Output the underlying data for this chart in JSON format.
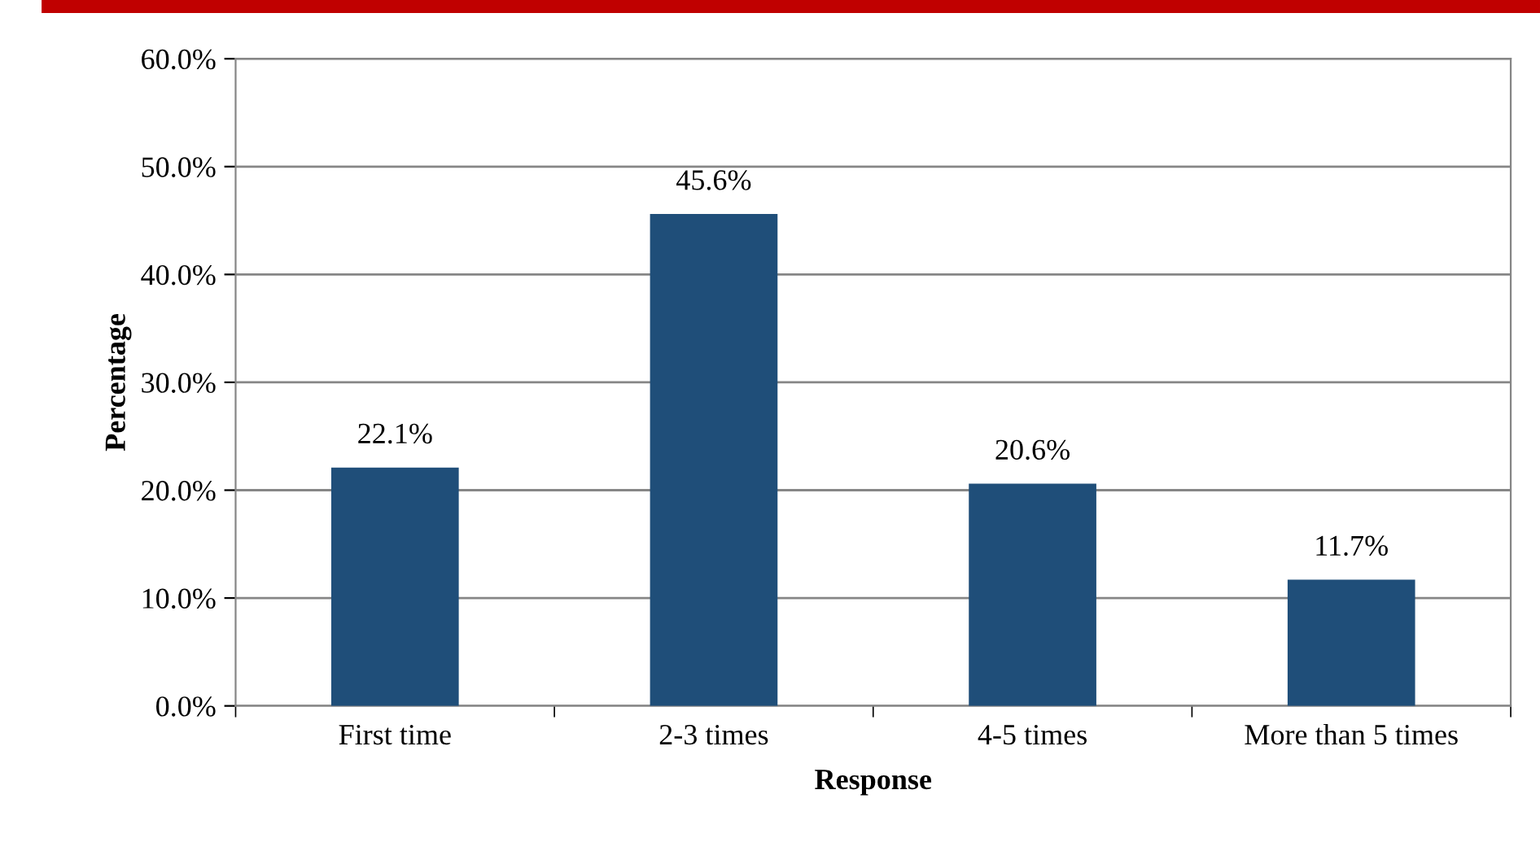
{
  "chart_data": {
    "type": "bar",
    "xlabel": "Response",
    "ylabel": "Percentage",
    "categories": [
      "First time",
      "2-3 times",
      "4-5 times",
      "More than 5 times"
    ],
    "values": [
      22.1,
      45.6,
      20.6,
      11.7
    ],
    "value_labels": [
      "22.1%",
      "45.6%",
      "20.6%",
      "11.7%"
    ],
    "color": "#1f4e79",
    "ylim": [
      0,
      60
    ],
    "yticks": [
      {
        "value": 0,
        "label": "0.0%"
      },
      {
        "value": 10,
        "label": "10.0%"
      },
      {
        "value": 20,
        "label": "20.0%"
      },
      {
        "value": 30,
        "label": "30.0%"
      },
      {
        "value": 40,
        "label": "40.0%"
      },
      {
        "value": 50,
        "label": "50.0%"
      },
      {
        "value": 60,
        "label": "60.0%"
      }
    ],
    "grid": "y"
  }
}
